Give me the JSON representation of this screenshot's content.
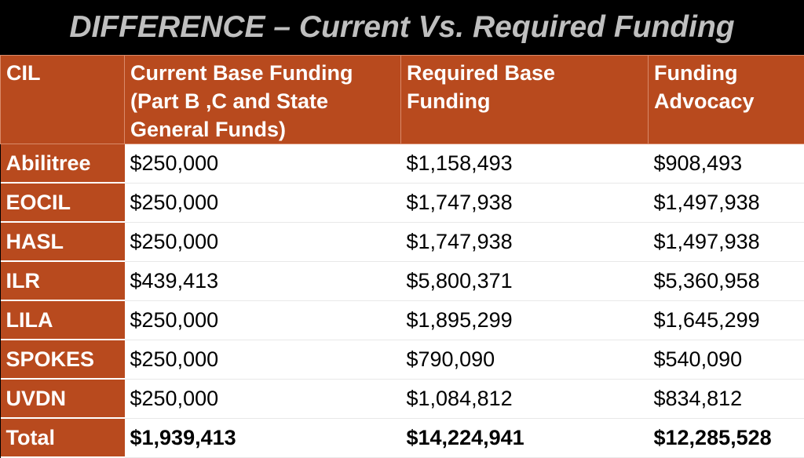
{
  "title": "DIFFERENCE – Current Vs. Required Funding",
  "table": {
    "headers": [
      "CIL",
      "Current Base Funding (Part B ,C and State General Funds)",
      "Required Base Funding",
      "Funding Advocacy"
    ],
    "rows": [
      {
        "cil": "Abilitree",
        "current": "$250,000",
        "required": "$1,158,493",
        "advocacy": "$908,493"
      },
      {
        "cil": "EOCIL",
        "current": "$250,000",
        "required": "$1,747,938",
        "advocacy": "$1,497,938"
      },
      {
        "cil": "HASL",
        "current": "$250,000",
        "required": "$1,747,938",
        "advocacy": "$1,497,938"
      },
      {
        "cil": "ILR",
        "current": "$439,413",
        "required": "$5,800,371",
        "advocacy": "$5,360,958"
      },
      {
        "cil": "LILA",
        "current": "$250,000",
        "required": "$1,895,299",
        "advocacy": "$1,645,299"
      },
      {
        "cil": "SPOKES",
        "current": "$250,000",
        "required": "$790,090",
        "advocacy": "$540,090"
      },
      {
        "cil": "UVDN",
        "current": "$250,000",
        "required": "$1,084,812",
        "advocacy": "$834,812"
      }
    ],
    "total": {
      "cil": "Total",
      "current": "$1,939,413",
      "required": "$14,224,941",
      "advocacy": "$12,285,528"
    }
  },
  "colors": {
    "header_bg": "#b84a1e",
    "title_text": "#bfbfbf",
    "page_bg": "#000000",
    "cell_bg": "#ffffff"
  }
}
